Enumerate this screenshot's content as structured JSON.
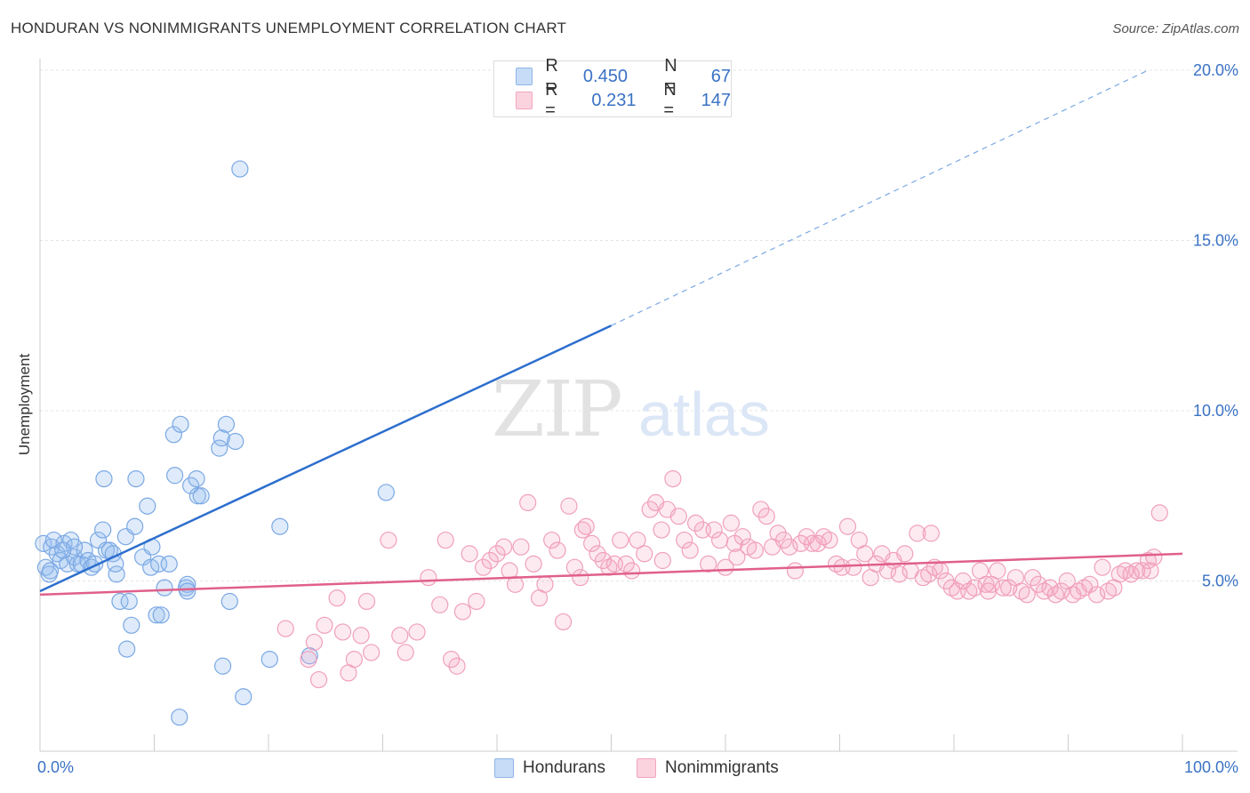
{
  "header": {
    "title": "HONDURAN VS NONIMMIGRANTS UNEMPLOYMENT CORRELATION CHART",
    "source": "Source: ZipAtlas.com"
  },
  "watermark": {
    "zip": "ZIP",
    "atlas": "atlas"
  },
  "legend_top": [
    {
      "r_label": "R =",
      "r_value": "0.450",
      "n_label": "N =",
      "n_value": "67",
      "color": "#a9c8f0"
    },
    {
      "r_label": "R =",
      "r_value": "0.231",
      "n_label": "N =",
      "n_value": "147",
      "color": "#f6b8cb"
    }
  ],
  "legend_bottom": [
    {
      "label": "Hondurans",
      "color": "#a9c8f0"
    },
    {
      "label": "Nonimmigrants",
      "color": "#f6b8cb"
    }
  ],
  "chart_data": {
    "type": "scatter",
    "title": "HONDURAN VS NONIMMIGRANTS UNEMPLOYMENT CORRELATION CHART",
    "xlabel": "",
    "ylabel": "Unemployment",
    "xlim": [
      0,
      100
    ],
    "ylim": [
      0,
      20
    ],
    "x_tick_labels": [
      "0.0%",
      "100.0%"
    ],
    "y_ticks": [
      5,
      10,
      15,
      20
    ],
    "y_tick_labels": [
      "5.0%",
      "10.0%",
      "15.0%",
      "20.0%"
    ],
    "grid": true,
    "legend_position": "top-center",
    "series": [
      {
        "name": "Hondurans",
        "color": "#6f9fe0",
        "line_color": "#2d6fce",
        "trend": {
          "x0": 0,
          "y0": 4.7,
          "x1": 50,
          "y1": 12.5,
          "dashed_to_x": 97,
          "dashed_to_y": 20.0
        },
        "points": [
          [
            0.3,
            6.1
          ],
          [
            0.5,
            5.4
          ],
          [
            0.8,
            5.2
          ],
          [
            1.0,
            6.0
          ],
          [
            1.2,
            6.2
          ],
          [
            1.5,
            5.8
          ],
          [
            1.8,
            5.6
          ],
          [
            2.1,
            6.1
          ],
          [
            2.4,
            5.5
          ],
          [
            2.7,
            6.2
          ],
          [
            3.0,
            5.7
          ],
          [
            3.3,
            5.5
          ],
          [
            3.6,
            5.5
          ],
          [
            3.9,
            5.9
          ],
          [
            4.2,
            5.6
          ],
          [
            4.5,
            5.4
          ],
          [
            4.8,
            5.5
          ],
          [
            5.1,
            6.2
          ],
          [
            5.5,
            6.5
          ],
          [
            5.8,
            5.9
          ],
          [
            6.1,
            5.9
          ],
          [
            6.4,
            5.8
          ],
          [
            6.7,
            5.2
          ],
          [
            7.0,
            4.4
          ],
          [
            7.5,
            6.3
          ],
          [
            5.6,
            8.0
          ],
          [
            8.4,
            8.0
          ],
          [
            7.8,
            4.4
          ],
          [
            8.0,
            3.7
          ],
          [
            7.6,
            3.0
          ],
          [
            8.3,
            6.6
          ],
          [
            9.0,
            5.7
          ],
          [
            9.4,
            7.2
          ],
          [
            9.7,
            5.4
          ],
          [
            10.2,
            4.0
          ],
          [
            10.4,
            5.5
          ],
          [
            10.6,
            4.0
          ],
          [
            10.9,
            4.8
          ],
          [
            11.3,
            5.5
          ],
          [
            11.8,
            8.1
          ],
          [
            11.7,
            9.3
          ],
          [
            12.3,
            9.6
          ],
          [
            12.8,
            4.8
          ],
          [
            12.9,
            4.9
          ],
          [
            13.2,
            7.8
          ],
          [
            13.7,
            8.0
          ],
          [
            13.8,
            7.5
          ],
          [
            14.1,
            7.5
          ],
          [
            15.7,
            8.9
          ],
          [
            15.9,
            9.2
          ],
          [
            16.3,
            9.6
          ],
          [
            17.1,
            9.1
          ],
          [
            16.6,
            4.4
          ],
          [
            17.5,
            17.1
          ],
          [
            16.0,
            2.5
          ],
          [
            17.8,
            1.6
          ],
          [
            20.1,
            2.7
          ],
          [
            21.0,
            6.6
          ],
          [
            23.6,
            2.8
          ],
          [
            30.3,
            7.6
          ],
          [
            12.2,
            1.0
          ],
          [
            9.8,
            6.0
          ],
          [
            3.0,
            6.0
          ],
          [
            2.0,
            5.9
          ],
          [
            6.6,
            5.5
          ],
          [
            12.9,
            4.7
          ],
          [
            0.9,
            5.3
          ]
        ]
      },
      {
        "name": "Nonimmigrants",
        "color": "#f08fb0",
        "line_color": "#e0608a",
        "trend": {
          "x0": 0,
          "y0": 4.6,
          "x1": 100,
          "y1": 5.8
        },
        "points": [
          [
            21.5,
            3.6
          ],
          [
            23.5,
            2.7
          ],
          [
            24.0,
            3.2
          ],
          [
            24.4,
            2.1
          ],
          [
            24.9,
            3.7
          ],
          [
            26.0,
            4.5
          ],
          [
            26.5,
            3.5
          ],
          [
            27.0,
            2.3
          ],
          [
            27.5,
            2.7
          ],
          [
            28.1,
            3.4
          ],
          [
            28.6,
            4.4
          ],
          [
            29.0,
            2.9
          ],
          [
            30.5,
            6.2
          ],
          [
            31.5,
            3.4
          ],
          [
            32.0,
            2.9
          ],
          [
            33.0,
            3.5
          ],
          [
            34.0,
            5.1
          ],
          [
            35.0,
            4.3
          ],
          [
            35.5,
            6.2
          ],
          [
            36.0,
            2.7
          ],
          [
            36.5,
            2.5
          ],
          [
            37.0,
            4.1
          ],
          [
            37.6,
            5.8
          ],
          [
            38.2,
            4.4
          ],
          [
            38.8,
            5.4
          ],
          [
            39.4,
            5.6
          ],
          [
            40.0,
            5.8
          ],
          [
            40.6,
            6.0
          ],
          [
            41.1,
            5.3
          ],
          [
            41.6,
            4.9
          ],
          [
            42.1,
            6.0
          ],
          [
            42.7,
            7.3
          ],
          [
            43.2,
            5.5
          ],
          [
            43.7,
            4.5
          ],
          [
            44.2,
            4.9
          ],
          [
            44.8,
            6.2
          ],
          [
            45.3,
            5.9
          ],
          [
            45.8,
            3.8
          ],
          [
            46.3,
            7.2
          ],
          [
            46.8,
            5.4
          ],
          [
            47.3,
            5.1
          ],
          [
            47.8,
            6.6
          ],
          [
            48.3,
            6.1
          ],
          [
            48.8,
            5.8
          ],
          [
            49.3,
            5.6
          ],
          [
            49.8,
            5.4
          ],
          [
            50.3,
            5.5
          ],
          [
            50.8,
            6.2
          ],
          [
            51.3,
            5.5
          ],
          [
            51.8,
            5.3
          ],
          [
            52.3,
            6.2
          ],
          [
            52.9,
            5.8
          ],
          [
            53.4,
            7.1
          ],
          [
            53.9,
            7.3
          ],
          [
            54.4,
            6.5
          ],
          [
            54.9,
            7.1
          ],
          [
            55.4,
            8.0
          ],
          [
            55.9,
            6.9
          ],
          [
            56.4,
            6.2
          ],
          [
            56.9,
            5.9
          ],
          [
            57.4,
            6.7
          ],
          [
            58.0,
            6.5
          ],
          [
            58.5,
            5.5
          ],
          [
            59.0,
            6.5
          ],
          [
            59.5,
            6.2
          ],
          [
            60.0,
            5.4
          ],
          [
            60.5,
            6.7
          ],
          [
            61.0,
            5.7
          ],
          [
            61.5,
            6.3
          ],
          [
            62.0,
            6.0
          ],
          [
            62.6,
            5.9
          ],
          [
            63.1,
            7.1
          ],
          [
            63.6,
            6.9
          ],
          [
            64.1,
            6.0
          ],
          [
            64.6,
            6.4
          ],
          [
            65.1,
            6.2
          ],
          [
            65.6,
            6.0
          ],
          [
            66.1,
            5.3
          ],
          [
            66.6,
            6.1
          ],
          [
            67.1,
            6.3
          ],
          [
            67.6,
            6.1
          ],
          [
            68.1,
            6.1
          ],
          [
            68.6,
            6.3
          ],
          [
            69.1,
            6.2
          ],
          [
            69.7,
            5.5
          ],
          [
            70.2,
            5.4
          ],
          [
            70.7,
            6.6
          ],
          [
            71.2,
            5.4
          ],
          [
            71.7,
            6.2
          ],
          [
            72.2,
            5.8
          ],
          [
            72.7,
            5.1
          ],
          [
            73.2,
            5.5
          ],
          [
            73.7,
            5.8
          ],
          [
            74.2,
            5.3
          ],
          [
            74.7,
            5.6
          ],
          [
            75.2,
            5.2
          ],
          [
            75.7,
            5.8
          ],
          [
            76.2,
            5.3
          ],
          [
            76.8,
            6.4
          ],
          [
            77.3,
            5.1
          ],
          [
            77.8,
            5.2
          ],
          [
            78.3,
            5.4
          ],
          [
            78.8,
            5.3
          ],
          [
            79.3,
            5.0
          ],
          [
            79.8,
            4.8
          ],
          [
            80.3,
            4.7
          ],
          [
            80.8,
            5.0
          ],
          [
            81.3,
            4.7
          ],
          [
            81.8,
            4.8
          ],
          [
            82.3,
            5.3
          ],
          [
            82.8,
            4.9
          ],
          [
            83.3,
            4.9
          ],
          [
            83.8,
            5.3
          ],
          [
            84.3,
            4.8
          ],
          [
            84.8,
            4.8
          ],
          [
            85.4,
            5.1
          ],
          [
            85.9,
            4.7
          ],
          [
            86.4,
            4.6
          ],
          [
            86.9,
            5.1
          ],
          [
            87.4,
            4.9
          ],
          [
            87.9,
            4.7
          ],
          [
            88.4,
            4.8
          ],
          [
            88.9,
            4.6
          ],
          [
            89.4,
            4.7
          ],
          [
            89.9,
            5.0
          ],
          [
            90.4,
            4.6
          ],
          [
            90.9,
            4.7
          ],
          [
            91.4,
            4.8
          ],
          [
            91.9,
            4.9
          ],
          [
            92.5,
            4.6
          ],
          [
            93.0,
            5.4
          ],
          [
            93.5,
            4.7
          ],
          [
            94.0,
            4.8
          ],
          [
            94.5,
            5.2
          ],
          [
            95.0,
            5.3
          ],
          [
            95.5,
            5.2
          ],
          [
            96.0,
            5.3
          ],
          [
            96.5,
            5.3
          ],
          [
            97.0,
            5.6
          ],
          [
            97.5,
            5.7
          ],
          [
            98.0,
            7.0
          ],
          [
            97.2,
            5.3
          ],
          [
            54.5,
            5.6
          ],
          [
            47.5,
            6.5
          ],
          [
            60.8,
            6.1
          ],
          [
            83.0,
            4.7
          ],
          [
            78.0,
            6.4
          ]
        ]
      }
    ]
  }
}
